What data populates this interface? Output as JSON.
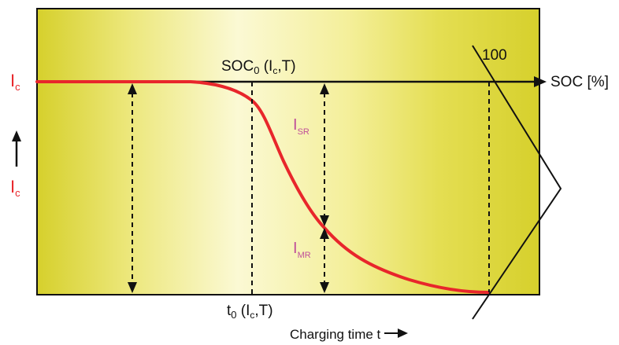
{
  "colors": {
    "frame_fill_light": "#fcfbd6",
    "frame_fill_dark": "#d8d230",
    "current_curve": "#e8262b",
    "region_labels": "#c0509a",
    "axis": "#111111"
  },
  "labels": {
    "ic_left": {
      "main": "I",
      "sub": "c"
    },
    "ic_axis": {
      "main": "I",
      "sub": "c"
    },
    "soc0": {
      "main": "SOC",
      "sub": "0",
      "args_open": " (I",
      "args_sub": "c",
      "args_close": ",T)"
    },
    "t0": {
      "main": "t",
      "sub": "0",
      "args_open": " (I",
      "args_sub": "c",
      "args_close": ",T)"
    },
    "soc_axis": "SOC [%]",
    "soc_100": "100",
    "time_axis": "Charging time t",
    "isr": {
      "main": "I",
      "sub": "SR"
    },
    "imr": {
      "main": "I",
      "sub": "MR"
    }
  }
}
